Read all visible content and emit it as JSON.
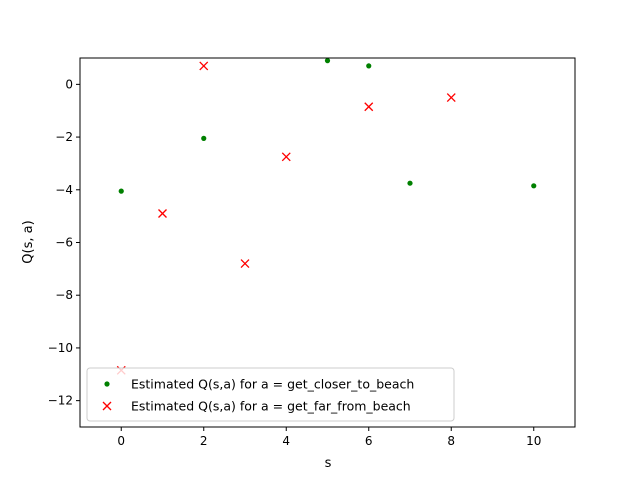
{
  "chart_data": {
    "type": "scatter",
    "xlabel": "s",
    "ylabel": "Q(s, a)",
    "xlim": [
      -1,
      11
    ],
    "ylim": [
      -13,
      1
    ],
    "xticks": [
      0,
      2,
      4,
      6,
      8,
      10
    ],
    "yticks": [
      0,
      -2,
      -4,
      -6,
      -8,
      -10,
      -12
    ],
    "legend_position": "lower-left",
    "grid": false,
    "series": [
      {
        "name": "Estimated Q(s,a) for a = get_closer_to_beach",
        "marker": "dot",
        "color": "#008000",
        "points": [
          {
            "x": 0,
            "y": -4.05
          },
          {
            "x": 2,
            "y": -2.05
          },
          {
            "x": 5,
            "y": 0.9
          },
          {
            "x": 6,
            "y": 0.7
          },
          {
            "x": 7,
            "y": -3.75
          },
          {
            "x": 10,
            "y": -3.85
          }
        ]
      },
      {
        "name": "Estimated Q(s,a) for a = get_far_from_beach",
        "marker": "x",
        "color": "#ff0000",
        "points": [
          {
            "x": 0,
            "y": -10.85
          },
          {
            "x": 1,
            "y": -4.9
          },
          {
            "x": 2,
            "y": 0.7
          },
          {
            "x": 3,
            "y": -6.8
          },
          {
            "x": 4,
            "y": -2.75
          },
          {
            "x": 6,
            "y": -0.85
          },
          {
            "x": 8,
            "y": -0.5
          }
        ]
      }
    ]
  }
}
